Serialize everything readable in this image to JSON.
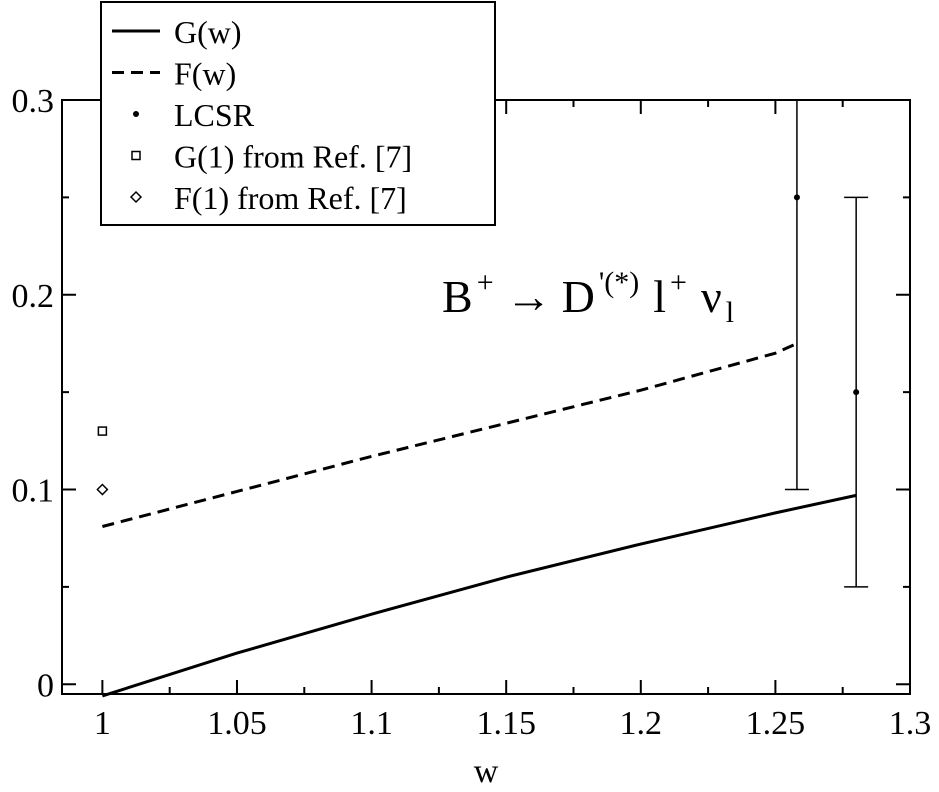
{
  "chart_data": {
    "type": "line",
    "xlabel": "w",
    "ylabel": "",
    "xlim": [
      0.985,
      1.3
    ],
    "ylim": [
      -0.005,
      0.3
    ],
    "xticks": [
      1,
      1.05,
      1.1,
      1.15,
      1.2,
      1.25,
      1.3
    ],
    "xtick_labels": [
      "1",
      "1.05",
      "1.1",
      "1.15",
      "1.2",
      "1.25",
      "1.3"
    ],
    "yticks": [
      0,
      0.1,
      0.2,
      0.3
    ],
    "ytick_labels": [
      "0",
      "0.1",
      "0.2",
      "0.3"
    ],
    "grid": false,
    "legend_position": "top-left",
    "legend": [
      {
        "label": "G(w)",
        "marker": "solid-line"
      },
      {
        "label": "F(w)",
        "marker": "dashed-line"
      },
      {
        "label": "LCSR",
        "marker": "dot"
      },
      {
        "label": "G(1) from Ref. [7]",
        "marker": "square"
      },
      {
        "label": "F(1) from Ref. [7]",
        "marker": "diamond"
      }
    ],
    "annotation": {
      "B": "B",
      "sup_plus": "+",
      "arrow": "→",
      "D": "D",
      "d_sup": "'(*)",
      "l": "l",
      "l_sup": "+",
      "nu": "ν",
      "nu_sub": "l"
    },
    "series": [
      {
        "name": "G(w)",
        "style": "solid",
        "x": [
          1.0,
          1.05,
          1.1,
          1.15,
          1.2,
          1.25,
          1.28
        ],
        "y": [
          -0.006,
          0.016,
          0.036,
          0.055,
          0.072,
          0.088,
          0.097
        ]
      },
      {
        "name": "F(w)",
        "style": "dashed",
        "x": [
          1.0,
          1.05,
          1.1,
          1.15,
          1.2,
          1.25,
          1.258
        ],
        "y": [
          0.081,
          0.099,
          0.117,
          0.134,
          0.151,
          0.17,
          0.175
        ]
      },
      {
        "name": "LCSR",
        "style": "points-with-errorbars",
        "x": [
          1.258,
          1.28
        ],
        "y": [
          0.25,
          0.15
        ],
        "yerr_low": [
          0.1,
          0.05
        ],
        "yerr_high": [
          0.3,
          0.25
        ]
      },
      {
        "name": "G(1) from Ref. [7]",
        "style": "square-marker",
        "x": [
          1.0
        ],
        "y": [
          0.13
        ]
      },
      {
        "name": "F(1) from Ref. [7]",
        "style": "diamond-marker",
        "x": [
          1.0
        ],
        "y": [
          0.1
        ]
      }
    ]
  }
}
